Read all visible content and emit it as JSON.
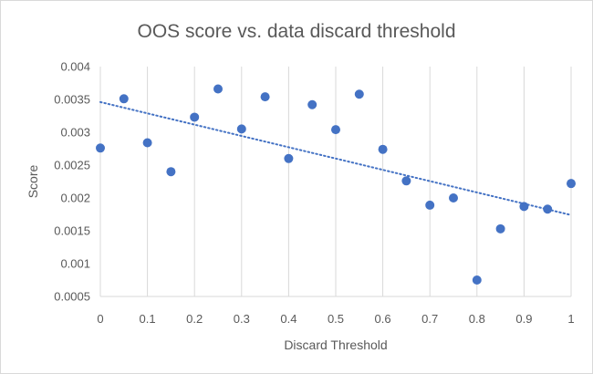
{
  "chart_data": {
    "type": "scatter",
    "title": "OOS score vs. data discard threshold",
    "xlabel": "Discard Threshold",
    "ylabel": "Score",
    "xlim": [
      0,
      1
    ],
    "ylim": [
      0.0005,
      0.004
    ],
    "x_ticks": [
      "0",
      "0.1",
      "0.2",
      "0.3",
      "0.4",
      "0.5",
      "0.6",
      "0.7",
      "0.8",
      "0.9",
      "1"
    ],
    "y_ticks": [
      "0.0005",
      "0.001",
      "0.0015",
      "0.002",
      "0.0025",
      "0.003",
      "0.0035",
      "0.004"
    ],
    "grid": {
      "vertical": true,
      "horizontal": false
    },
    "series": [
      {
        "color": "#4472c4",
        "points": [
          {
            "x": 0.0,
            "y": 0.00276
          },
          {
            "x": 0.05,
            "y": 0.00351
          },
          {
            "x": 0.1,
            "y": 0.00284
          },
          {
            "x": 0.15,
            "y": 0.0024
          },
          {
            "x": 0.2,
            "y": 0.00323
          },
          {
            "x": 0.25,
            "y": 0.00366
          },
          {
            "x": 0.3,
            "y": 0.00305
          },
          {
            "x": 0.35,
            "y": 0.00354
          },
          {
            "x": 0.4,
            "y": 0.0026
          },
          {
            "x": 0.45,
            "y": 0.00342
          },
          {
            "x": 0.5,
            "y": 0.00304
          },
          {
            "x": 0.55,
            "y": 0.00358
          },
          {
            "x": 0.6,
            "y": 0.00274
          },
          {
            "x": 0.65,
            "y": 0.00226
          },
          {
            "x": 0.7,
            "y": 0.00189
          },
          {
            "x": 0.75,
            "y": 0.002
          },
          {
            "x": 0.8,
            "y": 0.00075
          },
          {
            "x": 0.85,
            "y": 0.00153
          },
          {
            "x": 0.9,
            "y": 0.00187
          },
          {
            "x": 0.95,
            "y": 0.00183
          },
          {
            "x": 1.0,
            "y": 0.00222
          }
        ]
      }
    ],
    "trendline": {
      "type": "linear",
      "style": "dotted",
      "color": "#4472c4",
      "start": {
        "x": 0,
        "y": 0.00346
      },
      "end": {
        "x": 1,
        "y": 0.00174
      }
    }
  }
}
